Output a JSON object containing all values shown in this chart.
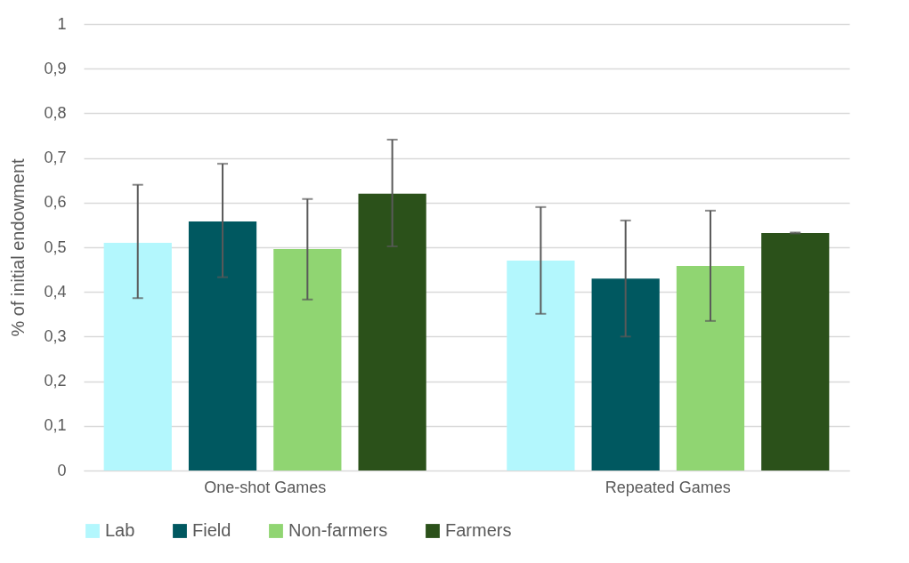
{
  "chart_data": {
    "type": "bar",
    "ylabel": "% of initial endowment",
    "categories": [
      "One-shot Games",
      "Repeated Games"
    ],
    "series": [
      {
        "name": "Lab",
        "color": "#b3f7fd",
        "values": [
          0.51,
          0.47
        ],
        "errors": [
          [
            0.386,
            0.64
          ],
          [
            0.351,
            0.59
          ]
        ]
      },
      {
        "name": "Field",
        "color": "#005860",
        "values": [
          0.558,
          0.43
        ],
        "errors": [
          [
            0.433,
            0.687
          ],
          [
            0.3,
            0.56
          ]
        ]
      },
      {
        "name": "Non-farmers",
        "color": "#90d572",
        "values": [
          0.496,
          0.458
        ],
        "errors": [
          [
            0.383,
            0.608
          ],
          [
            0.335,
            0.582
          ]
        ]
      },
      {
        "name": "Farmers",
        "color": "#2b511a",
        "values": [
          0.62,
          0.532
        ],
        "errors": [
          [
            0.502,
            0.741
          ],
          [
            0.531,
            0.533
          ]
        ]
      }
    ],
    "ylim": [
      0,
      1
    ],
    "yticks": [
      0,
      {
        "value": 0.1,
        "label": "0,1"
      },
      {
        "value": 0.2,
        "label": "0,2"
      },
      {
        "value": 0.3,
        "label": "0,3"
      },
      {
        "value": 0.4,
        "label": "0,4"
      },
      {
        "value": 0.5,
        "label": "0,5"
      },
      {
        "value": 0.6,
        "label": "0,6"
      },
      {
        "value": 0.7,
        "label": "0,7"
      },
      {
        "value": 0.8,
        "label": "0,8"
      },
      {
        "value": 0.9,
        "label": "0,9"
      },
      1
    ],
    "grid": "y",
    "legend": "bottom"
  }
}
